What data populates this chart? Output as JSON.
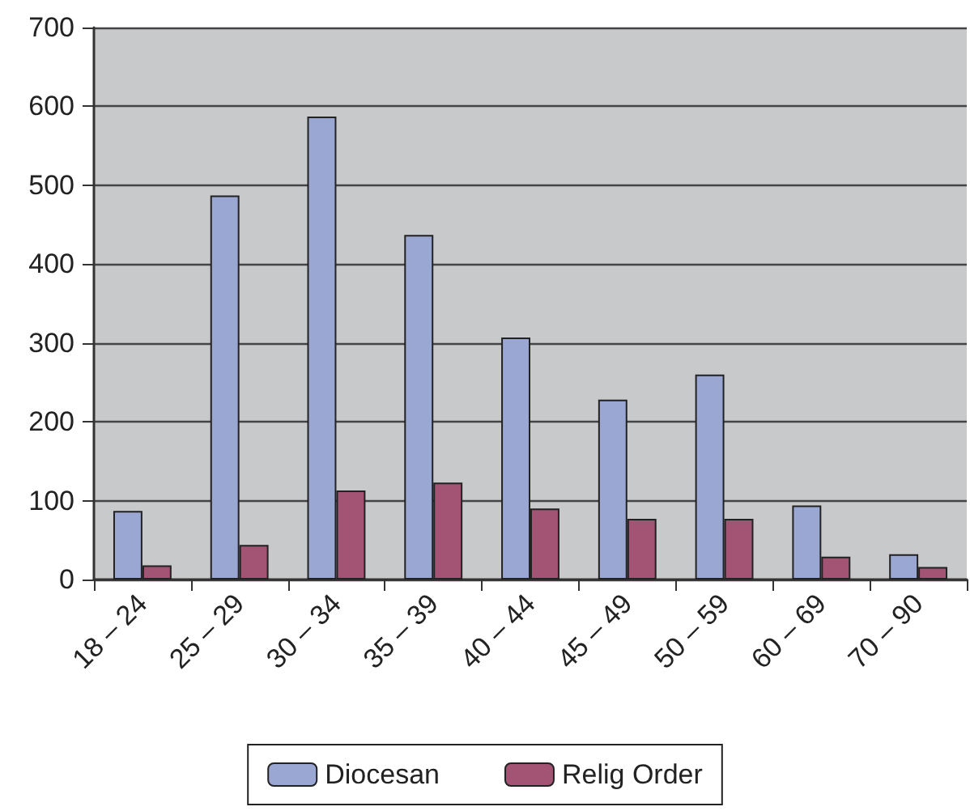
{
  "chart_data": {
    "type": "bar",
    "categories": [
      "18 – 24",
      "25 – 29",
      "30 – 34",
      "35 – 39",
      "40 – 44",
      "45 – 49",
      "50 – 59",
      "60 – 69",
      "70 – 90"
    ],
    "series": [
      {
        "name": "Diocesan",
        "color": "#9ba7d3",
        "values": [
          87,
          487,
          587,
          437,
          307,
          228,
          260,
          94,
          32
        ]
      },
      {
        "name": "Relig Order",
        "color": "#a35475",
        "values": [
          18,
          44,
          113,
          123,
          90,
          77,
          77,
          29,
          16
        ]
      }
    ],
    "ylim": [
      0,
      700
    ],
    "yticks": [
      0,
      100,
      200,
      300,
      400,
      500,
      600,
      700
    ],
    "grid": "y",
    "legend": "bottom"
  }
}
